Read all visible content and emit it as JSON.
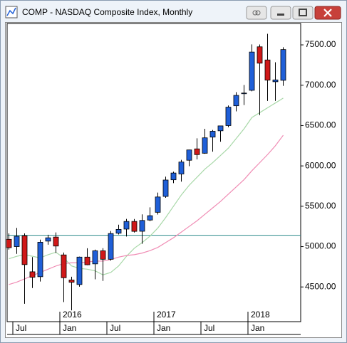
{
  "chart_data": {
    "type": "candlestick",
    "title": "COMP - NASDAQ Composite Index, Monthly",
    "categories": [
      null,
      "Jul",
      null,
      null,
      null,
      null,
      null,
      "Jan",
      null,
      null,
      null,
      null,
      null,
      "Jul",
      null,
      null,
      null,
      null,
      null,
      "Jan",
      null,
      null,
      null,
      null,
      null,
      "Jul",
      null,
      null,
      null,
      null,
      null,
      "Jan",
      null,
      null,
      null,
      null
    ],
    "year_labels": [
      null,
      null,
      null,
      null,
      null,
      null,
      null,
      "2016",
      null,
      null,
      null,
      null,
      null,
      null,
      null,
      null,
      null,
      null,
      null,
      "2017",
      null,
      null,
      null,
      null,
      null,
      null,
      null,
      null,
      null,
      null,
      null,
      "2018",
      null,
      null,
      null,
      null
    ],
    "open": [
      5090,
      5000,
      5134,
      4688,
      4627,
      5068,
      5118,
      4897,
      4586,
      4530,
      4870,
      4786,
      4948,
      4843,
      5166,
      5217,
      5312,
      5190,
      5329,
      5425,
      5622,
      5828,
      5900,
      6070,
      6211,
      6157,
      6357,
      6435,
      6500,
      6745,
      6895,
      6937,
      7476,
      7313,
      7043,
      7061
    ],
    "high": [
      5164,
      5232,
      5163,
      4870,
      5086,
      5147,
      5176,
      4926,
      4627,
      4876,
      4979,
      4963,
      4980,
      5193,
      5271,
      5343,
      5342,
      5399,
      5487,
      5670,
      5867,
      5929,
      6075,
      6201,
      6342,
      6460,
      6445,
      6498,
      6749,
      6914,
      7003,
      7506,
      7505,
      7637,
      7284,
      7471
    ],
    "low": [
      4963,
      4910,
      4292,
      4487,
      4567,
      5023,
      4922,
      4313,
      4210,
      4503,
      4770,
      4595,
      4575,
      4826,
      5150,
      5125,
      5174,
      5034,
      5316,
      5397,
      5604,
      5786,
      5805,
      5997,
      6081,
      6150,
      6177,
      6300,
      6480,
      6676,
      6754,
      6924,
      6630,
      6805,
      6806,
      6992
    ],
    "close": [
      4987,
      5128,
      4777,
      4620,
      5054,
      5109,
      5007,
      4614,
      4558,
      4870,
      4775,
      4948,
      4843,
      5162,
      5213,
      5312,
      5189,
      5324,
      5383,
      5615,
      5825,
      5912,
      6048,
      6198,
      6140,
      6348,
      6429,
      6496,
      6728,
      6874,
      6903,
      7411,
      7273,
      7063,
      7066,
      7442
    ],
    "up_color": "#1f5fd8",
    "down_color": "#d01818",
    "lines": [
      {
        "color": "#a8d8a8",
        "values": [
          4850,
          4880,
          4900,
          4880,
          4860,
          4900,
          4930,
          4860,
          4760,
          4730,
          4720,
          4700,
          4650,
          4680,
          4760,
          4880,
          4980,
          5050,
          5130,
          5230,
          5360,
          5500,
          5640,
          5760,
          5860,
          5960,
          6040,
          6130,
          6220,
          6340,
          6460,
          6600,
          6660,
          6720,
          6780,
          6840
        ]
      },
      {
        "color": "#f08cb4",
        "values": [
          4530,
          4560,
          4600,
          4640,
          4680,
          4720,
          4760,
          4790,
          4800,
          4800,
          4810,
          4820,
          4820,
          4840,
          4870,
          4890,
          4900,
          4920,
          4950,
          4990,
          5050,
          5110,
          5180,
          5250,
          5320,
          5400,
          5480,
          5560,
          5650,
          5740,
          5830,
          5940,
          6040,
          6140,
          6250,
          6380
        ]
      }
    ],
    "reference_line": {
      "value": 5140,
      "color": "#2b8c8c"
    },
    "ylim": [
      4070,
      7765
    ],
    "yticks": [
      {
        "value": 4500,
        "label": "4500.00"
      },
      {
        "value": 5000,
        "label": "5000.00"
      },
      {
        "value": 5500,
        "label": "5500.00"
      },
      {
        "value": 6000,
        "label": "6000.00"
      },
      {
        "value": 6500,
        "label": "6500.00"
      },
      {
        "value": 7000,
        "label": "7000.00"
      },
      {
        "value": 7500,
        "label": "7500.00"
      }
    ]
  }
}
